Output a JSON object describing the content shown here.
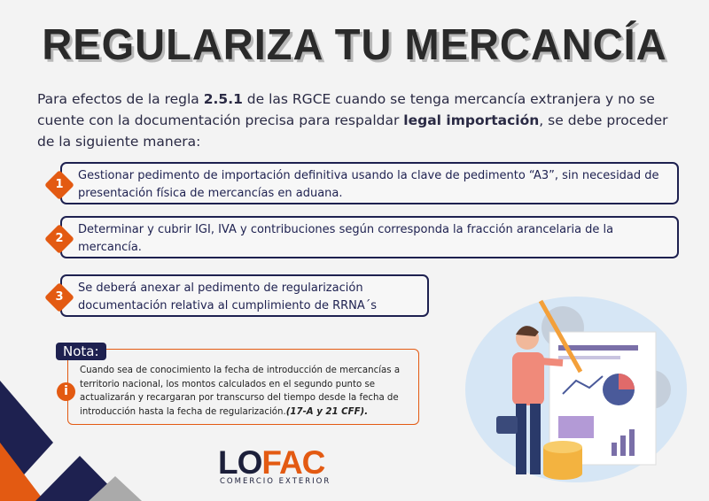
{
  "title": "REGULARIZA TU MERCANCÍA",
  "intro": {
    "p1": "Para efectos de la regla ",
    "rule": "2.5.1",
    "p2": " de las RGCE cuando se tenga mercancía extranjera y no se cuente con la documentación precisa para respaldar ",
    "bold": "legal importación",
    "p3": ", se debe proceder de la siguiente manera:"
  },
  "steps": [
    {
      "number": "1",
      "text": "Gestionar pedimento de importación definitiva usando la clave de pedimento “A3”, sin necesidad de presentación física de mercancías en aduana."
    },
    {
      "number": "2",
      "text": "Determinar y cubrir IGI, IVA y contribuciones según corresponda la fracción arancelaria de la mercancía."
    },
    {
      "number": "3",
      "text": "Se deberá anexar al pedimento de regularización documentación relativa al cumplimiento de RRNA´s"
    }
  ],
  "note": {
    "label": "Nota:",
    "text": "Cuando sea de conocimiento la fecha de introducción de mercancías a territorio nacional, los montos calculados en el segundo punto se actualizarán y recargaran por transcurso del tiempo desde la fecha de introducción hasta la fecha de regularización.",
    "ref": "(17-A y 21 CFF)."
  },
  "logo": {
    "part1": "LO",
    "part2": "FAC",
    "tagline": "COMERCIO EXTERIOR"
  },
  "colors": {
    "navy": "#1e2150",
    "orange": "#e35a12"
  }
}
